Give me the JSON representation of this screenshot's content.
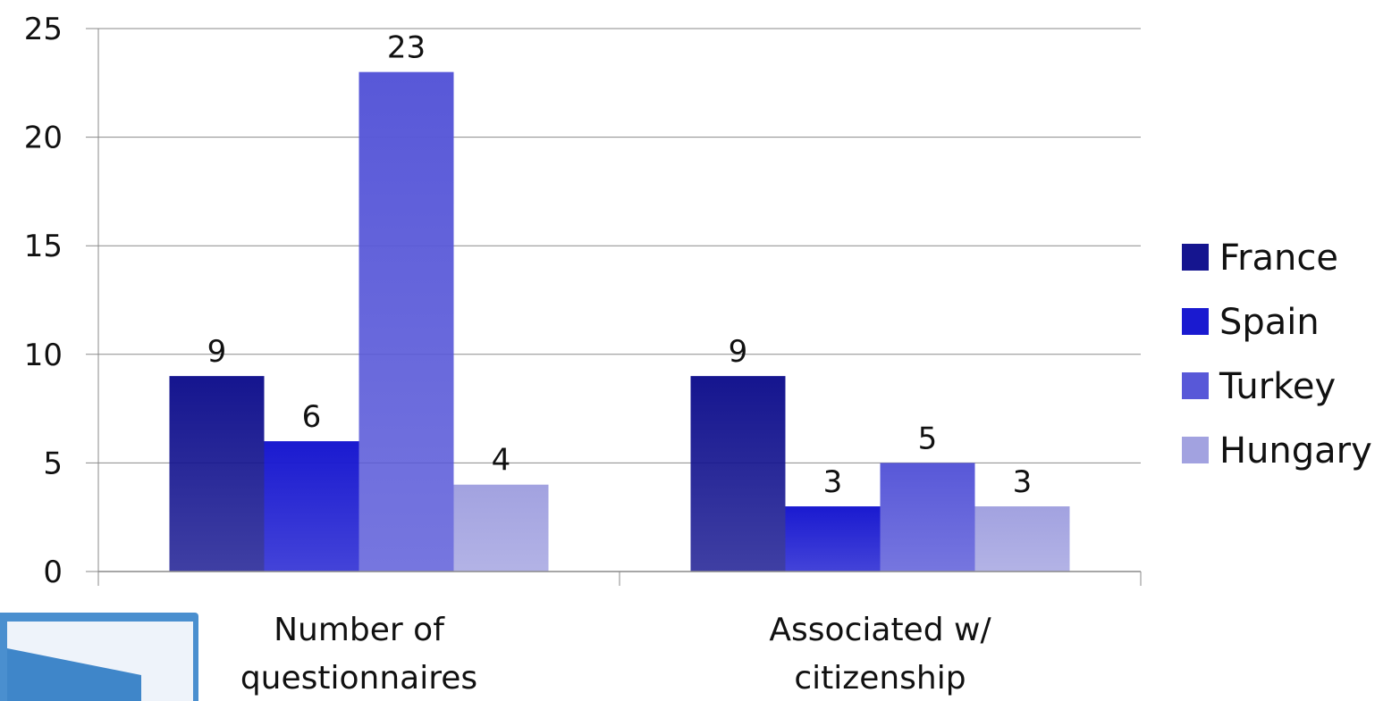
{
  "chart_data": {
    "type": "bar",
    "categories": [
      "Number of questionnaires",
      "Associated w/ citizenship"
    ],
    "category_lines": [
      [
        "Number of",
        "questionnaires"
      ],
      [
        "Associated w/",
        "citizenship"
      ]
    ],
    "series": [
      {
        "name": "France",
        "values": [
          9,
          9
        ],
        "color": "#15158f"
      },
      {
        "name": "Spain",
        "values": [
          6,
          3
        ],
        "color": "#1a1ad0"
      },
      {
        "name": "Turkey",
        "values": [
          23,
          5
        ],
        "color": "#5858d8"
      },
      {
        "name": "Hungary",
        "values": [
          4,
          3
        ],
        "color": "#a2a2e0"
      }
    ],
    "ylim": [
      0,
      25
    ],
    "yticks": [
      "0",
      "5",
      "10",
      "15",
      "20",
      "25"
    ],
    "grid": true,
    "legend_position": "right",
    "data_labels": true
  },
  "nav": {
    "icon": "forward-arrow-icon"
  }
}
